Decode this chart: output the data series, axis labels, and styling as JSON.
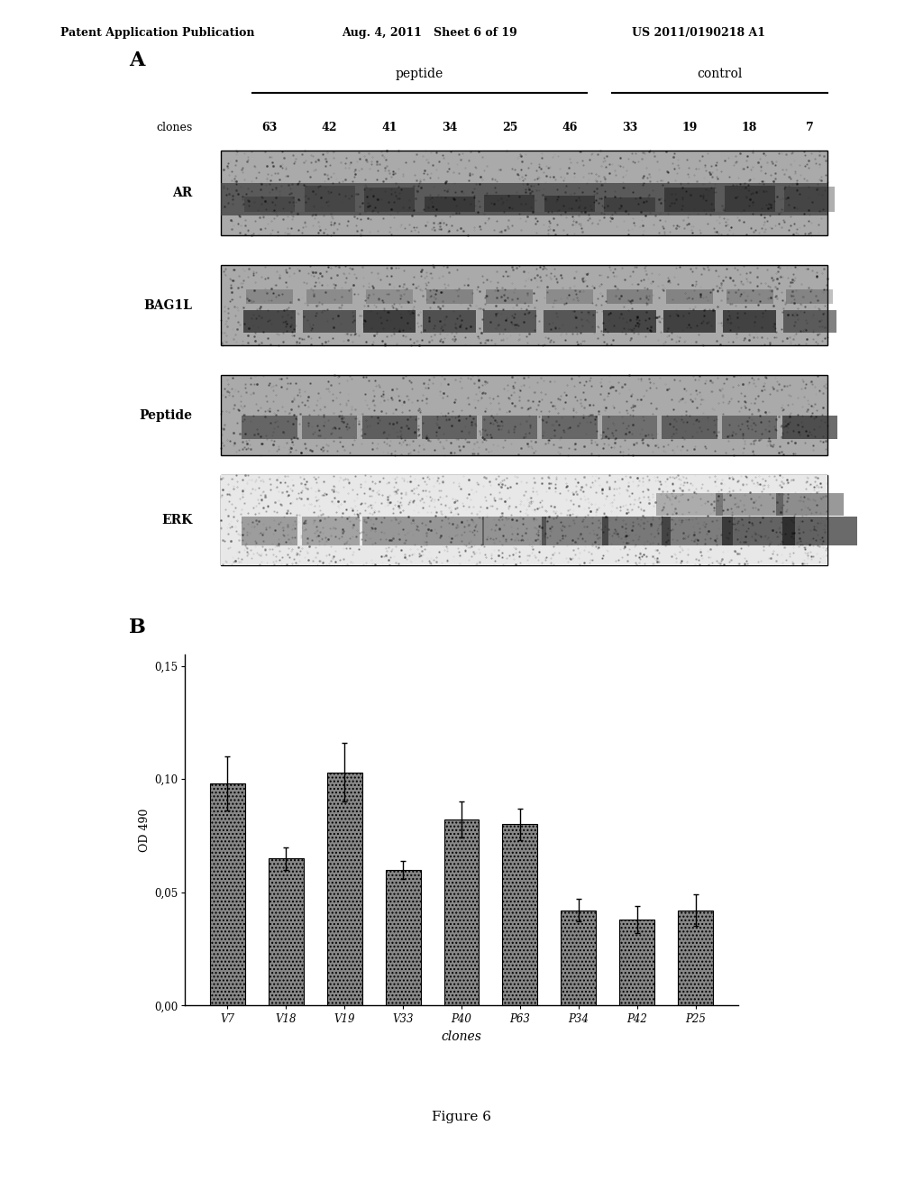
{
  "header_left": "Patent Application Publication",
  "header_mid": "Aug. 4, 2011   Sheet 6 of 19",
  "header_right": "US 2011/0190218 A1",
  "panel_A_label": "A",
  "panel_B_label": "B",
  "peptide_label": "peptide",
  "control_label": "control",
  "clones_label": "clones",
  "clone_numbers": [
    "63",
    "42",
    "41",
    "34",
    "25",
    "46",
    "33",
    "19",
    "18",
    "7"
  ],
  "western_rows": [
    "AR",
    "BAG1L",
    "Peptide",
    "ERK"
  ],
  "bar_categories": [
    "V7",
    "V18",
    "V19",
    "V33",
    "P40",
    "P63",
    "P34",
    "P42",
    "P25"
  ],
  "bar_values": [
    0.098,
    0.065,
    0.103,
    0.06,
    0.082,
    0.08,
    0.042,
    0.038,
    0.042
  ],
  "bar_errors": [
    0.012,
    0.005,
    0.013,
    0.004,
    0.008,
    0.007,
    0.005,
    0.006,
    0.007
  ],
  "ylabel": "OD 490",
  "xlabel": "clones",
  "yticks": [
    0.0,
    0.05,
    0.1,
    0.15
  ],
  "ytick_labels": [
    "0,00",
    "0,05",
    "0,10",
    "0,15"
  ],
  "figure_label": "Figure 6",
  "bar_color": "#7a7a7a",
  "background": "#ffffff",
  "blot_bg_color": "#aaaaaa",
  "blot_dark_color": "#333333",
  "header_fontsize": 9,
  "panel_label_fontsize": 16
}
